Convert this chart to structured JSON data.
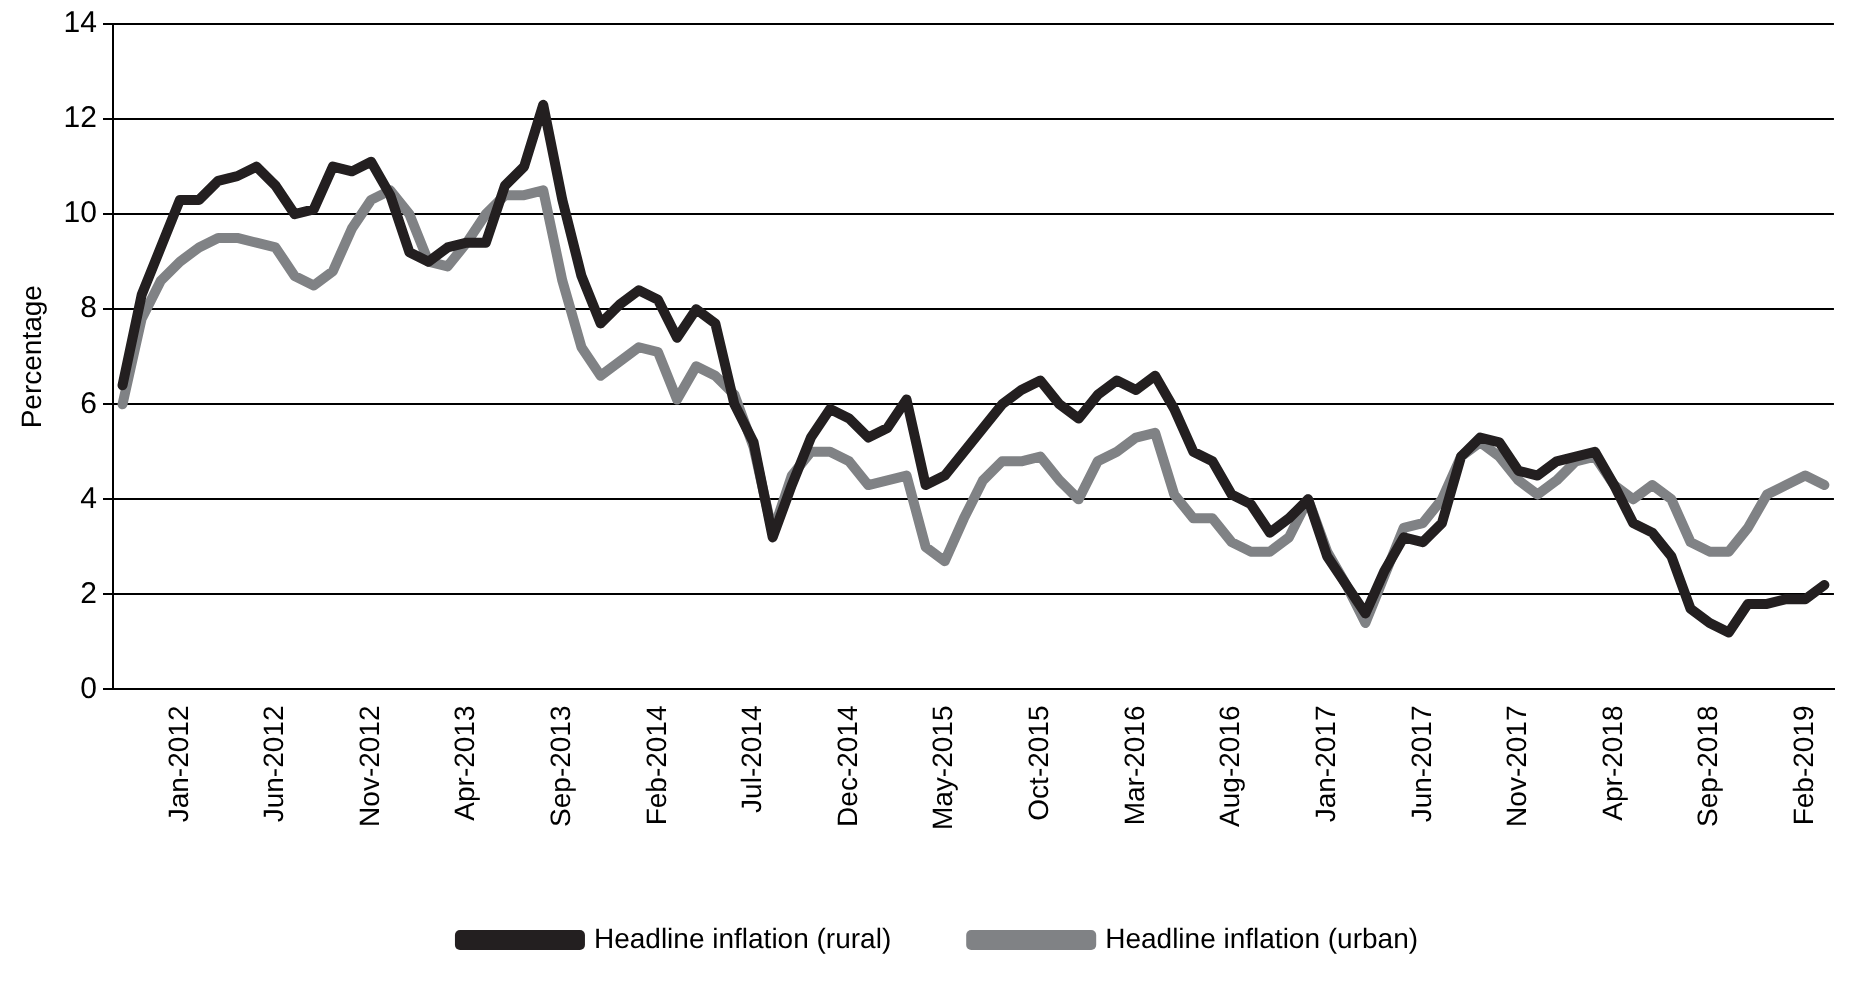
{
  "chart_data": {
    "type": "line",
    "ylabel": "Percentage",
    "categories": [
      null,
      null,
      null,
      "Jan-2012",
      null,
      null,
      null,
      null,
      "Jun-2012",
      null,
      null,
      null,
      null,
      "Nov-2012",
      null,
      null,
      null,
      null,
      "Apr-2013",
      null,
      null,
      null,
      null,
      "Sep-2013",
      null,
      null,
      null,
      null,
      "Feb-2014",
      null,
      null,
      null,
      null,
      "Jul-2014",
      null,
      null,
      null,
      null,
      "Dec-2014",
      null,
      null,
      null,
      null,
      "May-2015",
      null,
      null,
      null,
      null,
      "Oct-2015",
      null,
      null,
      null,
      null,
      "Mar-2016",
      null,
      null,
      null,
      null,
      "Aug-2016",
      null,
      null,
      null,
      null,
      "Jan-2017",
      null,
      null,
      null,
      null,
      "Jun-2017",
      null,
      null,
      null,
      null,
      "Nov-2017",
      null,
      null,
      null,
      null,
      "Apr-2018",
      null,
      null,
      null,
      null,
      "Sep-2018",
      null,
      null,
      null,
      null,
      "Feb-2019",
      null
    ],
    "series": [
      {
        "name": "Headline inflation (rural)",
        "color": "#231f20",
        "values": [
          6.4,
          8.3,
          9.3,
          10.3,
          10.3,
          10.7,
          10.8,
          11.0,
          10.6,
          10.0,
          10.1,
          11.0,
          10.9,
          11.1,
          10.4,
          9.2,
          9.0,
          9.3,
          9.4,
          9.4,
          10.6,
          11.0,
          12.3,
          10.3,
          8.7,
          7.7,
          8.1,
          8.4,
          8.2,
          7.4,
          8.0,
          7.7,
          6.0,
          5.2,
          3.2,
          4.3,
          5.3,
          5.9,
          5.7,
          5.3,
          5.5,
          6.1,
          4.3,
          4.5,
          5.0,
          5.5,
          6.0,
          6.3,
          6.5,
          6.0,
          5.7,
          6.2,
          6.5,
          6.3,
          6.6,
          5.9,
          5.0,
          4.8,
          4.1,
          3.9,
          3.3,
          3.6,
          4.0,
          2.8,
          2.2,
          1.6,
          2.5,
          3.2,
          3.1,
          3.5,
          4.9,
          5.3,
          5.2,
          4.6,
          4.5,
          4.8,
          4.9,
          5.0,
          4.3,
          3.5,
          3.3,
          2.8,
          1.7,
          1.4,
          1.2,
          1.8,
          1.8,
          1.9,
          1.9,
          2.2
        ]
      },
      {
        "name": "Headline inflation (urban)",
        "color": "#808285",
        "values": [
          6.0,
          7.8,
          8.6,
          9.0,
          9.3,
          9.5,
          9.5,
          9.4,
          9.3,
          8.7,
          8.5,
          8.8,
          9.7,
          10.3,
          10.5,
          10.0,
          9.0,
          8.9,
          9.4,
          10.0,
          10.4,
          10.4,
          10.5,
          8.6,
          7.2,
          6.6,
          6.9,
          7.2,
          7.1,
          6.1,
          6.8,
          6.6,
          6.2,
          5.1,
          3.3,
          4.5,
          5.0,
          5.0,
          4.8,
          4.3,
          4.4,
          4.5,
          3.0,
          2.7,
          3.6,
          4.4,
          4.8,
          4.8,
          4.9,
          4.4,
          4.0,
          4.8,
          5.0,
          5.3,
          5.4,
          4.1,
          3.6,
          3.6,
          3.1,
          2.9,
          2.9,
          3.2,
          4.0,
          2.9,
          2.2,
          1.4,
          2.4,
          3.4,
          3.5,
          4.0,
          4.9,
          5.2,
          4.9,
          4.4,
          4.1,
          4.4,
          4.8,
          4.9,
          4.3,
          4.0,
          4.3,
          4.0,
          3.1,
          2.9,
          2.9,
          3.4,
          4.1,
          4.3,
          4.5,
          4.3
        ]
      }
    ],
    "ylim": [
      0,
      14
    ],
    "yticks": [
      0,
      2,
      4,
      6,
      8,
      10,
      12,
      14
    ],
    "grid": "y",
    "legend": "bottom",
    "marker": "none",
    "line_style": "solid"
  }
}
